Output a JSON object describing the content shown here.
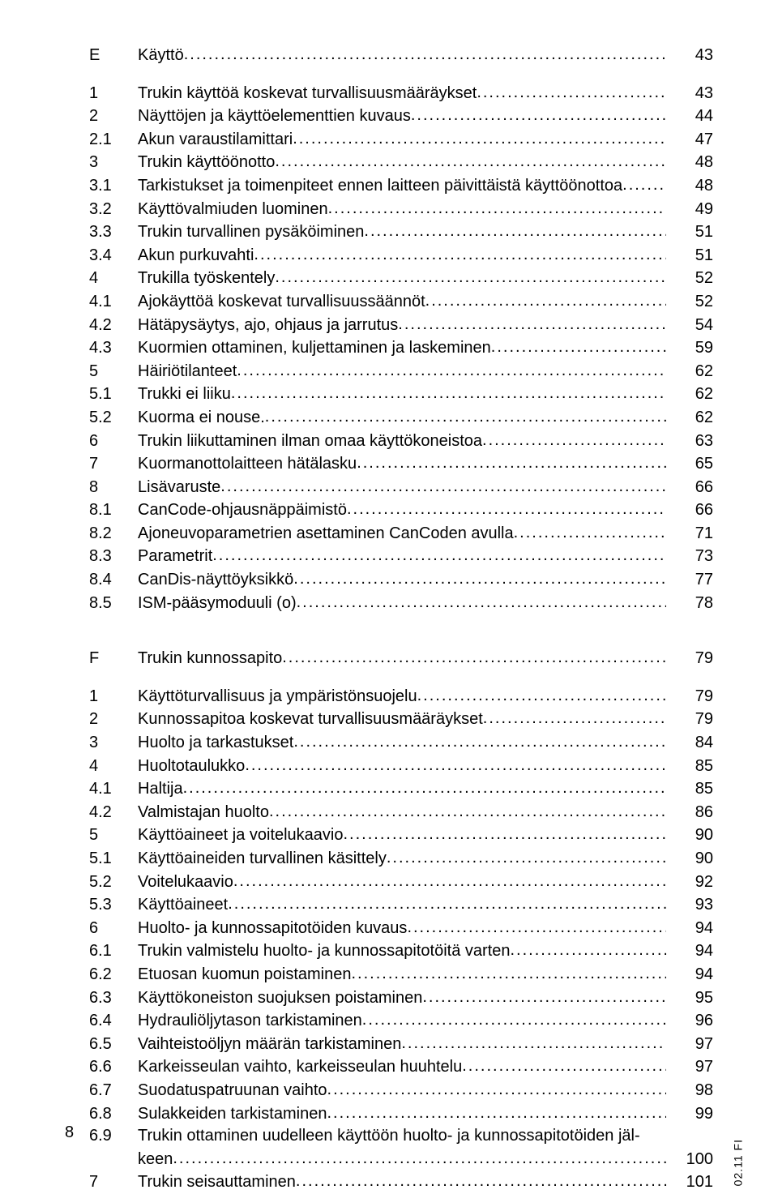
{
  "section_e": {
    "num": "E",
    "title": "Käyttö",
    "page": "43",
    "items": [
      {
        "num": "1",
        "title": "Trukin käyttöä koskevat turvallisuusmääräykset",
        "page": "43"
      },
      {
        "num": "2",
        "title": "Näyttöjen ja käyttöelementtien kuvaus",
        "page": "44"
      },
      {
        "num": "2.1",
        "title": "Akun varaustilamittari",
        "page": "47"
      },
      {
        "num": "3",
        "title": "Trukin käyttöönotto",
        "page": "48"
      },
      {
        "num": "3.1",
        "title": "Tarkistukset ja toimenpiteet ennen laitteen päivittäistä käyttöönottoa",
        "page": "48"
      },
      {
        "num": "3.2",
        "title": "Käyttövalmiuden luominen",
        "page": "49"
      },
      {
        "num": "3.3",
        "title": "Trukin turvallinen pysäköiminen",
        "page": "51"
      },
      {
        "num": "3.4",
        "title": "Akun purkuvahti",
        "page": "51"
      },
      {
        "num": "4",
        "title": "Trukilla työskentely",
        "page": "52"
      },
      {
        "num": "4.1",
        "title": "Ajokäyttöä koskevat turvallisuussäännöt",
        "page": "52"
      },
      {
        "num": "4.2",
        "title": "Hätäpysäytys, ajo, ohjaus ja jarrutus",
        "page": "54"
      },
      {
        "num": "4.3",
        "title": "Kuormien ottaminen, kuljettaminen ja laskeminen",
        "page": "59"
      },
      {
        "num": "5",
        "title": "Häiriötilanteet",
        "page": "62"
      },
      {
        "num": "5.1",
        "title": "Trukki ei liiku",
        "page": "62"
      },
      {
        "num": "5.2",
        "title": "Kuorma ei nouse.",
        "page": "62"
      },
      {
        "num": "6",
        "title": "Trukin liikuttaminen ilman omaa käyttökoneistoa",
        "page": "63"
      },
      {
        "num": "7",
        "title": "Kuormanottolaitteen hätälasku",
        "page": "65"
      },
      {
        "num": "8",
        "title": "Lisävaruste",
        "page": "66"
      },
      {
        "num": "8.1",
        "title": "CanCode-ohjausnäppäimistö",
        "page": "66"
      },
      {
        "num": "8.2",
        "title": "Ajoneuvoparametrien asettaminen CanCoden avulla",
        "page": "71"
      },
      {
        "num": "8.3",
        "title": "Parametrit",
        "page": "73"
      },
      {
        "num": "8.4",
        "title": "CanDis-näyttöyksikkö",
        "page": "77"
      },
      {
        "num": "8.5",
        "title": "ISM-pääsymoduuli (o)",
        "page": "78"
      }
    ]
  },
  "section_f": {
    "num": "F",
    "title": "Trukin kunnossapito",
    "page": "79",
    "items": [
      {
        "num": "1",
        "title": "Käyttöturvallisuus ja ympäristönsuojelu",
        "page": "79"
      },
      {
        "num": "2",
        "title": "Kunnossapitoa koskevat turvallisuusmääräykset",
        "page": "79"
      },
      {
        "num": "3",
        "title": "Huolto ja tarkastukset",
        "page": "84"
      },
      {
        "num": "4",
        "title": "Huoltotaulukko",
        "page": "85"
      },
      {
        "num": "4.1",
        "title": "Haltija",
        "page": "85"
      },
      {
        "num": "4.2",
        "title": "Valmistajan huolto",
        "page": "86"
      },
      {
        "num": "5",
        "title": "Käyttöaineet ja voitelukaavio",
        "page": "90"
      },
      {
        "num": "5.1",
        "title": "Käyttöaineiden turvallinen käsittely",
        "page": "90"
      },
      {
        "num": "5.2",
        "title": "Voitelukaavio",
        "page": "92"
      },
      {
        "num": "5.3",
        "title": "Käyttöaineet",
        "page": "93"
      },
      {
        "num": "6",
        "title": "Huolto- ja kunnossapitotöiden kuvaus",
        "page": "94"
      },
      {
        "num": "6.1",
        "title": "Trukin valmistelu huolto- ja kunnossapitotöitä varten",
        "page": "94"
      },
      {
        "num": "6.2",
        "title": "Etuosan kuomun poistaminen",
        "page": "94"
      },
      {
        "num": "6.3",
        "title": "Käyttökoneiston suojuksen poistaminen",
        "page": "95"
      },
      {
        "num": "6.4",
        "title": "Hydrauliöljytason tarkistaminen",
        "page": "96"
      },
      {
        "num": "6.5",
        "title": "Vaihteistoöljyn määrän tarkistaminen",
        "page": "97"
      },
      {
        "num": "6.6",
        "title": "Karkeisseulan vaihto, karkeisseulan huuhtelu",
        "page": "97"
      },
      {
        "num": "6.7",
        "title": "Suodatuspatruunan vaihto",
        "page": "98"
      },
      {
        "num": "6.8",
        "title": "Sulakkeiden tarkistaminen",
        "page": "99"
      },
      {
        "num": "6.9",
        "title_line1": "Trukin ottaminen uudelleen käyttöön huolto- ja kunnossapitotöiden jäl-",
        "title_line2": "keen",
        "page": "100"
      },
      {
        "num": "7",
        "title": "Trukin seisauttaminen",
        "page": "101"
      }
    ]
  },
  "footer_page": "8",
  "side_tag": "02.11 FI"
}
